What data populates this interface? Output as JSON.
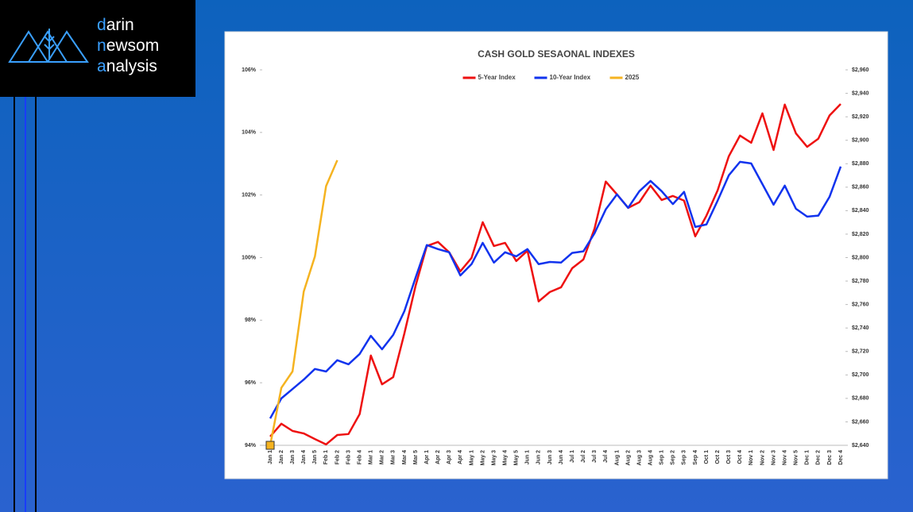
{
  "logo": {
    "lines": [
      {
        "first": "d",
        "rest": "arin"
      },
      {
        "first": "n",
        "rest": "ewsom"
      },
      {
        "first": "a",
        "rest": "nalysis"
      }
    ]
  },
  "chart_data": {
    "type": "line",
    "title": "CASH GOLD SESAONAL INDEXES",
    "categories": [
      "Jan 1",
      "Jan 2",
      "Jan 3",
      "Jan 4",
      "Jan 5",
      "Feb 1",
      "Feb 2",
      "Feb 3",
      "Feb 4",
      "Mar 1",
      "Mar 2",
      "Mar 3",
      "Mar 4",
      "Mar 5",
      "Apr 1",
      "Apr 2",
      "Apr 3",
      "Apr 4",
      "May 1",
      "May 2",
      "May 3",
      "May 4",
      "May 5",
      "Jun 1",
      "Jun 2",
      "Jun 3",
      "Jun 4",
      "Jul 1",
      "Jul 2",
      "Jul 3",
      "Jul 4",
      "Aug 1",
      "Aug 2",
      "Aug 3",
      "Aug 4",
      "Sep 1",
      "Sep 2",
      "Sep 3",
      "Sep 4",
      "Oct 1",
      "Oct 2",
      "Oct 3",
      "Oct 4",
      "Nov 1",
      "Nov 2",
      "Nov 3",
      "Nov 4",
      "Nov 5",
      "Dec 1",
      "Dec 2",
      "Dec 3",
      "Dec 4"
    ],
    "series": [
      {
        "name": "5-Year Index",
        "color": "#ee1111",
        "values": [
          94.28,
          94.69,
          94.46,
          94.38,
          94.2,
          94.03,
          94.33,
          94.36,
          95.0,
          96.87,
          95.95,
          96.18,
          97.58,
          99.1,
          100.37,
          100.5,
          100.17,
          99.56,
          99.99,
          101.13,
          100.37,
          100.47,
          99.89,
          100.22,
          98.6,
          98.9,
          99.05,
          99.66,
          99.94,
          100.93,
          102.43,
          102.02,
          101.59,
          101.77,
          102.3,
          101.84,
          101.97,
          101.82,
          100.68,
          101.34,
          102.15,
          103.24,
          103.9,
          103.67,
          104.61,
          103.44,
          104.89,
          103.97,
          103.54,
          103.8,
          104.54,
          104.91
        ]
      },
      {
        "name": "10-Year Index",
        "color": "#1133ee",
        "values": [
          94.86,
          95.5,
          95.8,
          96.1,
          96.44,
          96.36,
          96.72,
          96.59,
          96.92,
          97.5,
          97.07,
          97.53,
          98.29,
          99.36,
          100.4,
          100.27,
          100.17,
          99.43,
          99.79,
          100.47,
          99.84,
          100.17,
          100.04,
          100.27,
          99.79,
          99.86,
          99.84,
          100.15,
          100.2,
          100.78,
          101.54,
          102.02,
          101.59,
          102.12,
          102.45,
          102.12,
          101.71,
          102.1,
          100.98,
          101.06,
          101.82,
          102.63,
          103.06,
          103.01,
          102.35,
          101.69,
          102.3,
          101.56,
          101.31,
          101.34,
          101.94,
          102.91
        ]
      },
      {
        "name": "2025",
        "color": "#f5b320",
        "axis": "y2",
        "values": [
          2640,
          2689,
          2703,
          2771,
          2801,
          2861,
          2883,
          null,
          null,
          null,
          null,
          null,
          null,
          null,
          null,
          null,
          null,
          null,
          null,
          null,
          null,
          null,
          null,
          null,
          null,
          null,
          null,
          null,
          null,
          null,
          null,
          null,
          null,
          null,
          null,
          null,
          null,
          null,
          null,
          null,
          null,
          null,
          null,
          null,
          null,
          null,
          null,
          null,
          null,
          null,
          null,
          null
        ]
      }
    ],
    "ylim": [
      94,
      106
    ],
    "yticks": [
      {
        "value": 94,
        "label": "94%"
      },
      {
        "value": 96,
        "label": "96%"
      },
      {
        "value": 98,
        "label": "98%"
      },
      {
        "value": 100,
        "label": "100%"
      },
      {
        "value": 102,
        "label": "102%"
      },
      {
        "value": 104,
        "label": "104%"
      },
      {
        "value": 106,
        "label": "106%"
      }
    ],
    "y2lim": [
      2640,
      2960
    ],
    "y2ticks": [
      {
        "value": 2640,
        "label": "$2,640"
      },
      {
        "value": 2660,
        "label": "$2,660"
      },
      {
        "value": 2680,
        "label": "$2,680"
      },
      {
        "value": 2700,
        "label": "$2,700"
      },
      {
        "value": 2720,
        "label": "$2,720"
      },
      {
        "value": 2740,
        "label": "$2,740"
      },
      {
        "value": 2760,
        "label": "$2,760"
      },
      {
        "value": 2780,
        "label": "$2,780"
      },
      {
        "value": 2800,
        "label": "$2,800"
      },
      {
        "value": 2820,
        "label": "$2,820"
      },
      {
        "value": 2840,
        "label": "$2,840"
      },
      {
        "value": 2860,
        "label": "$2,860"
      },
      {
        "value": 2880,
        "label": "$2,880"
      },
      {
        "value": 2900,
        "label": "$2,900"
      },
      {
        "value": 2920,
        "label": "$2,920"
      },
      {
        "value": 2940,
        "label": "$2,940"
      },
      {
        "value": 2960,
        "label": "$2,960"
      }
    ],
    "legend": "top"
  }
}
